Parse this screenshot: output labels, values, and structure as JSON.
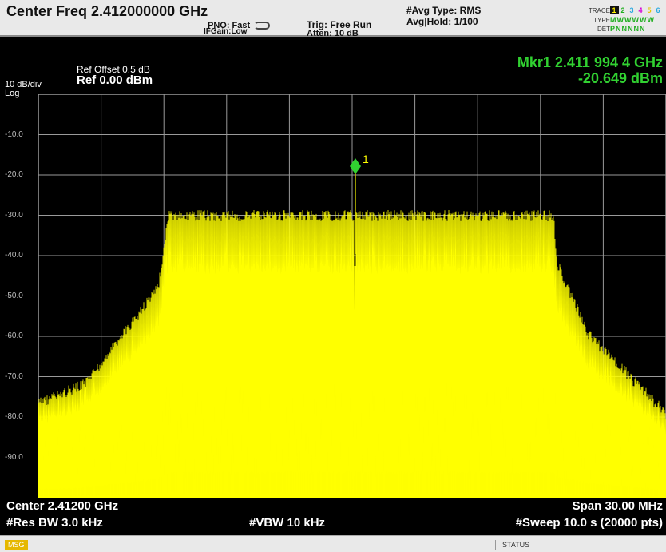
{
  "header": {
    "title": "Center Freq 2.412000000 GHz",
    "pno": "PNO: Fast",
    "ifgain": "IFGain:Low",
    "trig": "Trig: Free Run",
    "atten": "Atten: 10 dB",
    "avg_type": "#Avg Type: RMS",
    "avg_hold": "Avg|Hold: 1/100",
    "trace_key": "TRACE",
    "type_key": "TYPE",
    "det_key": "DET",
    "trace_numbers": [
      "1",
      "2",
      "3",
      "4",
      "5",
      "6"
    ],
    "type_value": "MWWWWW",
    "det_value": "PNNNNN"
  },
  "display": {
    "ref_offset": "Ref Offset 0.5 dB",
    "ref_level": "Ref 0.00 dBm",
    "scale": "10 dB/div",
    "scale_type": "Log",
    "y_ticks": [
      "-10.0",
      "-20.0",
      "-30.0",
      "-40.0",
      "-50.0",
      "-60.0",
      "-70.0",
      "-80.0",
      "-90.0"
    ]
  },
  "marker": {
    "freq": "Mkr1 2.411 994 4 GHz",
    "amp": "-20.649 dBm",
    "label": "1"
  },
  "footer": {
    "center": "Center 2.41200 GHz",
    "res_bw": "#Res BW 3.0 kHz",
    "vbw": "#VBW 10 kHz",
    "span": "Span 30.00 MHz",
    "sweep": "#Sweep  10.0 s (20000 pts)"
  },
  "status": {
    "msg": "MSG",
    "status": "STATUS"
  },
  "colors": {
    "trace": "#ffff00",
    "marker": "#31d131",
    "grid": "#9a9a9a"
  }
}
